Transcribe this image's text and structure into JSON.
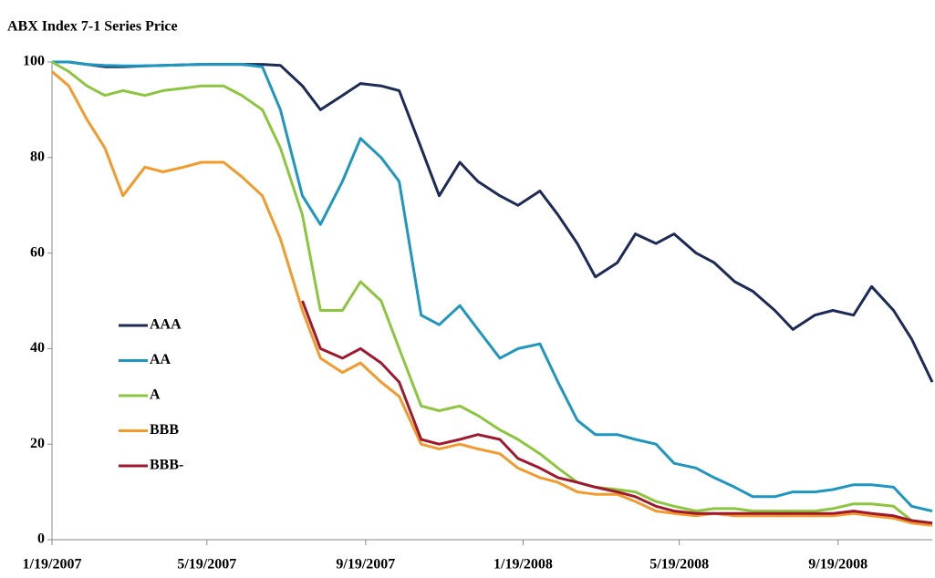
{
  "chart_data": {
    "type": "line",
    "title": "ABX Index 7-1 Series Price",
    "x": [
      "1/19/2007",
      "2/1/2007",
      "2/15/2007",
      "3/1/2007",
      "3/15/2007",
      "4/1/2007",
      "4/15/2007",
      "5/1/2007",
      "5/15/2007",
      "6/1/2007",
      "6/15/2007",
      "7/1/2007",
      "7/15/2007",
      "8/1/2007",
      "8/15/2007",
      "9/1/2007",
      "9/15/2007",
      "10/1/2007",
      "10/15/2007",
      "11/1/2007",
      "11/15/2007",
      "12/1/2007",
      "12/15/2007",
      "1/1/2008",
      "1/15/2008",
      "2/1/2008",
      "2/15/2008",
      "3/1/2008",
      "3/15/2008",
      "4/1/2008",
      "4/15/2008",
      "5/1/2008",
      "5/15/2008",
      "6/1/2008",
      "6/15/2008",
      "7/1/2008",
      "7/15/2008",
      "8/1/2008",
      "8/15/2008",
      "9/1/2008",
      "9/15/2008",
      "10/1/2008",
      "10/15/2008",
      "11/1/2008",
      "11/15/2008",
      "12/1/2008"
    ],
    "series": [
      {
        "name": "AAA",
        "color": "#1b2a57",
        "values": [
          100,
          100,
          99.5,
          99,
          99,
          99.2,
          99.3,
          99.4,
          99.5,
          99.5,
          99.5,
          99.5,
          99.3,
          95,
          90,
          93,
          95.5,
          95,
          94,
          82,
          72,
          79,
          75,
          72,
          70,
          73,
          68,
          62,
          55,
          58,
          64,
          62,
          64,
          60,
          58,
          54,
          52,
          48,
          44,
          47,
          48,
          47,
          53,
          48,
          42,
          33
        ]
      },
      {
        "name": "AA",
        "color": "#1e96c0",
        "values": [
          100,
          100,
          99.5,
          99.3,
          99.2,
          99.2,
          99.3,
          99.4,
          99.5,
          99.5,
          99.5,
          99,
          90,
          72,
          66,
          75,
          84,
          80,
          75,
          47,
          45,
          49,
          44,
          38,
          40,
          41,
          33,
          25,
          22,
          22,
          21,
          20,
          16,
          15,
          13,
          11,
          9,
          9,
          10,
          10,
          10.5,
          11.5,
          11.5,
          11,
          7,
          6
        ]
      },
      {
        "name": "A",
        "color": "#8cc63f",
        "values": [
          100,
          98,
          95,
          93,
          94,
          93,
          94,
          94.5,
          95,
          95,
          93,
          90,
          82,
          68,
          48,
          48,
          54,
          50,
          40,
          28,
          27,
          28,
          26,
          23,
          21,
          18,
          15,
          12,
          11,
          10.5,
          10,
          8,
          7,
          6,
          6.5,
          6.5,
          6,
          6,
          6,
          6,
          6.5,
          7.5,
          7.5,
          7,
          4,
          3.5
        ]
      },
      {
        "name": "BBB",
        "color": "#f39a2c",
        "values": [
          98,
          95,
          88,
          82,
          72,
          78,
          77,
          78,
          79,
          79,
          76,
          72,
          63,
          48,
          38,
          35,
          37,
          33,
          30,
          20,
          19,
          20,
          19,
          18,
          15,
          13,
          12,
          10,
          9.5,
          9.5,
          8,
          6,
          5.5,
          5,
          5.5,
          5,
          5,
          5,
          5,
          5,
          5,
          5.5,
          5,
          4.5,
          3.5,
          3
        ]
      },
      {
        "name": "BBB-",
        "color": "#a0182d",
        "values": [
          null,
          null,
          null,
          null,
          null,
          null,
          null,
          null,
          null,
          null,
          null,
          null,
          null,
          50,
          40,
          38,
          40,
          37,
          33,
          21,
          20,
          21,
          22,
          21,
          17,
          15,
          13,
          12,
          11,
          10,
          9,
          7,
          6,
          5.5,
          5.5,
          5.5,
          5.5,
          5.5,
          5.5,
          5.5,
          5.5,
          6,
          5.5,
          5,
          4,
          3.5
        ]
      }
    ],
    "xlim": [
      "1/19/2007",
      "12/1/2008"
    ],
    "xticks": [
      "1/19/2007",
      "5/19/2007",
      "9/19/2007",
      "1/19/2008",
      "5/19/2008",
      "9/19/2008"
    ],
    "ylim": [
      0,
      100
    ],
    "yticks": [
      0,
      20,
      40,
      60,
      80,
      100
    ]
  }
}
